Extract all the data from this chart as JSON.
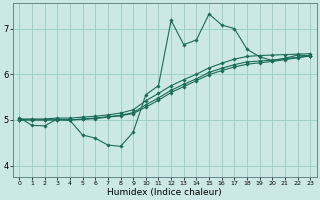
{
  "xlabel": "Humidex (Indice chaleur)",
  "background_color": "#cce8e4",
  "grid_color": "#99ccc6",
  "line_color": "#1a6b5a",
  "marker": "D",
  "markersize": 1.8,
  "linewidth": 0.8,
  "xlim": [
    -0.5,
    23.5
  ],
  "ylim": [
    3.75,
    7.55
  ],
  "yticks": [
    4,
    5,
    6,
    7
  ],
  "xticks": [
    0,
    1,
    2,
    3,
    4,
    5,
    6,
    7,
    8,
    9,
    10,
    11,
    12,
    13,
    14,
    15,
    16,
    17,
    18,
    19,
    20,
    21,
    22,
    23
  ],
  "series": [
    [
      5.05,
      4.88,
      4.87,
      5.02,
      4.99,
      4.67,
      4.6,
      4.45,
      4.42,
      4.73,
      5.55,
      5.75,
      7.18,
      6.65,
      6.75,
      7.32,
      7.08,
      7.0,
      6.55,
      6.38,
      6.3,
      6.35,
      6.42,
      6.4
    ],
    [
      5.02,
      5.02,
      5.02,
      5.04,
      5.04,
      5.06,
      5.08,
      5.11,
      5.15,
      5.22,
      5.42,
      5.58,
      5.75,
      5.88,
      6.0,
      6.14,
      6.24,
      6.33,
      6.39,
      6.41,
      6.42,
      6.43,
      6.44,
      6.45
    ],
    [
      5.0,
      5.0,
      5.0,
      5.0,
      5.0,
      5.02,
      5.04,
      5.07,
      5.1,
      5.16,
      5.33,
      5.48,
      5.65,
      5.78,
      5.9,
      6.04,
      6.13,
      6.21,
      6.27,
      6.29,
      6.31,
      6.34,
      6.37,
      6.41
    ],
    [
      5.0,
      5.0,
      5.0,
      5.0,
      5.0,
      5.01,
      5.03,
      5.06,
      5.09,
      5.14,
      5.28,
      5.43,
      5.6,
      5.73,
      5.86,
      5.99,
      6.08,
      6.16,
      6.22,
      6.25,
      6.28,
      6.32,
      6.36,
      6.4
    ]
  ]
}
